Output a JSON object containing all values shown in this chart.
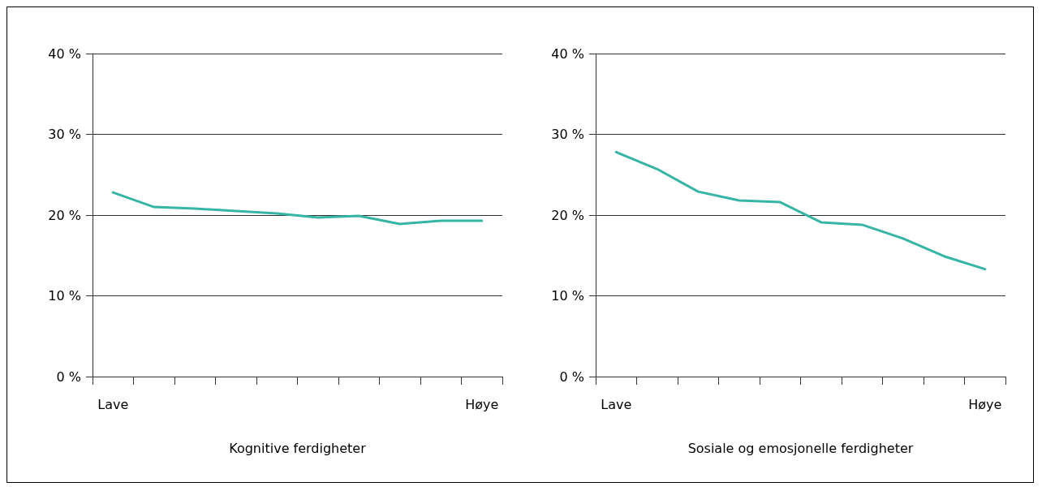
{
  "chart_data": [
    {
      "type": "line",
      "xlabel": "Kognitive ferdigheter",
      "categories": [
        "Lave",
        null,
        null,
        null,
        null,
        null,
        null,
        null,
        null,
        "Høye"
      ],
      "series": [
        {
          "color": "#36b5a6",
          "values": [
            22.8,
            21.0,
            20.8,
            20.5,
            20.2,
            19.7,
            19.9,
            18.9,
            19.3,
            19.3
          ]
        }
      ],
      "ylim": [
        0,
        40
      ],
      "yticks": [
        {
          "value": 0,
          "label": "0 %"
        },
        {
          "value": 10,
          "label": "10 %"
        },
        {
          "value": 20,
          "label": "20 %"
        },
        {
          "value": 30,
          "label": "30 %"
        },
        {
          "value": 40,
          "label": "40 %"
        }
      ],
      "grid": "y",
      "marker": "none",
      "line_style": "solid"
    },
    {
      "type": "line",
      "xlabel": "Sosiale og emosjonelle ferdigheter",
      "categories": [
        "Lave",
        null,
        null,
        null,
        null,
        null,
        null,
        null,
        null,
        "Høye"
      ],
      "series": [
        {
          "color": "#36b5a6",
          "values": [
            27.8,
            25.7,
            22.9,
            21.8,
            21.6,
            19.1,
            18.8,
            17.1,
            14.9,
            13.3
          ]
        }
      ],
      "ylim": [
        0,
        40
      ],
      "yticks": [
        {
          "value": 0,
          "label": "0 %"
        },
        {
          "value": 10,
          "label": "10 %"
        },
        {
          "value": 20,
          "label": "20 %"
        },
        {
          "value": 30,
          "label": "30 %"
        },
        {
          "value": 40,
          "label": "40 %"
        }
      ],
      "grid": "y",
      "marker": "none",
      "line_style": "solid"
    }
  ]
}
